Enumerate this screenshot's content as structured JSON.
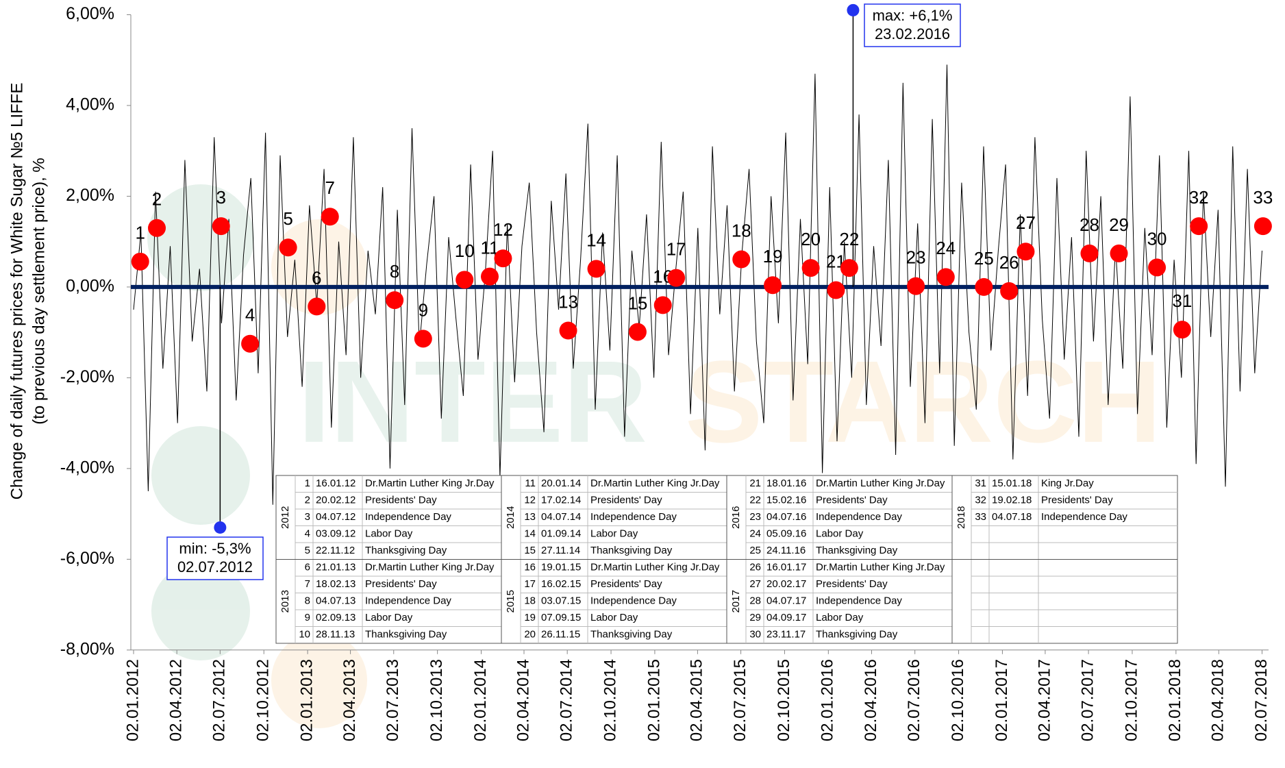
{
  "chart_data": {
    "type": "line",
    "y_label": [
      "Change of daily futures prices for White Sugar №5 LIFFE",
      "(to previous day settlement price), %"
    ],
    "watermark": [
      "INTER",
      "STARCH"
    ],
    "ylim": [
      -8,
      6
    ],
    "yticks": [
      {
        "value": 6,
        "label": "6,00%"
      },
      {
        "value": 4,
        "label": "4,00%"
      },
      {
        "value": 2,
        "label": "2,00%"
      },
      {
        "value": 0,
        "label": "0,00%"
      },
      {
        "value": -2,
        "label": "-2,00%"
      },
      {
        "value": -4,
        "label": "-4,00%"
      },
      {
        "value": -6,
        "label": "-6,00%"
      },
      {
        "value": -8,
        "label": "-8,00%"
      }
    ],
    "xlim": [
      "02.01.2012",
      "02.07.2018"
    ],
    "xticks": [
      "02.01.2012",
      "02.04.2012",
      "02.07.2012",
      "02.10.2012",
      "02.01.2013",
      "02.04.2013",
      "02.07.2013",
      "02.10.2013",
      "02.01.2014",
      "02.04.2014",
      "02.07.2014",
      "02.10.2014",
      "02.01.2015",
      "02.04.2015",
      "02.07.2015",
      "02.10.2015",
      "02.01.2016",
      "02.04.2016",
      "02.07.2016",
      "02.10.2016",
      "02.01.2017",
      "02.04.2017",
      "02.07.2017",
      "02.10.2017",
      "02.01.2018",
      "02.04.2018",
      "02.07.2018"
    ],
    "line_color": "#000000",
    "zero_line_color": "#002060",
    "marker_color": "#ff0000",
    "extreme_color": "#2233ee",
    "daily_change": [
      -0.5,
      1.2,
      -4.5,
      2.1,
      -1.8,
      0.9,
      -3.0,
      2.8,
      -1.2,
      0.4,
      -2.3,
      3.3,
      -0.8,
      1.5,
      -2.5,
      0.7,
      2.4,
      -1.9,
      3.4,
      -4.8,
      2.9,
      -1.1,
      0.6,
      -2.2,
      1.8,
      -0.4,
      2.6,
      -3.1,
      1.0,
      -1.5,
      3.3,
      -2.0,
      0.8,
      -0.6,
      2.2,
      -4.0,
      1.7,
      -2.6,
      3.5,
      -1.3,
      0.5,
      2.0,
      -2.9,
      1.1,
      -0.7,
      -2.4,
      2.7,
      -1.6,
      0.3,
      3.0,
      -4.2,
      1.4,
      -2.1,
      0.9,
      2.3,
      -1.0,
      -3.2,
      1.9,
      -0.5,
      2.5,
      -1.8,
      0.6,
      3.6,
      -2.7,
      1.2,
      -1.4,
      2.9,
      -3.3,
      0.8,
      -0.9,
      1.6,
      -2.0,
      3.2,
      -1.5,
      0.4,
      2.1,
      -2.8,
      1.3,
      -3.6,
      3.1,
      -0.6,
      1.8,
      -2.3,
      0.7,
      2.6,
      -1.2,
      -3.0,
      2.0,
      -0.8,
      3.4,
      -2.5,
      1.5,
      -1.7,
      4.7,
      -4.1,
      2.2,
      -3.4,
      1.0,
      -2.0,
      3.8,
      -2.6,
      0.9,
      -1.3,
      2.8,
      -3.7,
      4.5,
      -2.2,
      1.4,
      -3.0,
      3.7,
      -1.9,
      4.9,
      -3.5,
      2.3,
      -1.0,
      -2.7,
      3.1,
      -1.4,
      0.8,
      2.7,
      -3.8,
      1.6,
      -2.4,
      3.3,
      -0.7,
      -2.9,
      2.4,
      -1.6,
      1.1,
      -3.3,
      3.0,
      -1.2,
      2.0,
      -2.6,
      0.9,
      -1.8,
      4.2,
      -2.8,
      1.3,
      -1.5,
      2.9,
      -3.1,
      0.6,
      -2.0,
      3.0,
      -3.9,
      2.1,
      -1.1,
      1.7,
      -4.4,
      3.1,
      -2.3,
      2.6,
      -1.9,
      0.8
    ],
    "min": {
      "value": -5.3,
      "date": "02.07.2012",
      "label": "min: -5,3%"
    },
    "max": {
      "value": 6.1,
      "date": "23.02.2016",
      "label": "max: +6,1%"
    },
    "years": [
      "2012",
      "2013",
      "2014",
      "2015",
      "2016",
      "2017",
      "2018"
    ],
    "holidays": [
      {
        "n": 1,
        "date": "16.01.12",
        "name": "Dr.Martin Luther King Jr.Day",
        "value": 0.56
      },
      {
        "n": 2,
        "date": "20.02.12",
        "name": "Presidents' Day",
        "value": 1.3
      },
      {
        "n": 3,
        "date": "04.07.12",
        "name": "Independence Day",
        "value": 1.34
      },
      {
        "n": 4,
        "date": "03.09.12",
        "name": "Labor Day",
        "value": -1.25
      },
      {
        "n": 5,
        "date": "22.11.12",
        "name": "Thanksgiving Day",
        "value": 0.87
      },
      {
        "n": 6,
        "date": "21.01.13",
        "name": "Dr.Martin Luther King Jr.Day",
        "value": -0.43
      },
      {
        "n": 7,
        "date": "18.02.13",
        "name": "Presidents' Day",
        "value": 1.55
      },
      {
        "n": 8,
        "date": "04.07.13",
        "name": "Independence Day",
        "value": -0.29
      },
      {
        "n": 9,
        "date": "02.09.13",
        "name": "Labor Day",
        "value": -1.14
      },
      {
        "n": 10,
        "date": "28.11.13",
        "name": "Thanksgiving Day",
        "value": 0.16
      },
      {
        "n": 11,
        "date": "20.01.14",
        "name": "Dr.Martin Luther King Jr.Day",
        "value": 0.23
      },
      {
        "n": 12,
        "date": "17.02.14",
        "name": "Presidents' Day",
        "value": 0.63
      },
      {
        "n": 13,
        "date": "04.07.14",
        "name": "Independence Day",
        "value": -0.96
      },
      {
        "n": 14,
        "date": "01.09.14",
        "name": "Labor Day",
        "value": 0.4
      },
      {
        "n": 15,
        "date": "27.11.14",
        "name": "Thanksgiving Day",
        "value": -0.99
      },
      {
        "n": 16,
        "date": "19.01.15",
        "name": "Dr.Martin Luther King Jr.Day",
        "value": -0.4
      },
      {
        "n": 17,
        "date": "16.02.15",
        "name": "Presidents' Day",
        "value": 0.2
      },
      {
        "n": 18,
        "date": "03.07.15",
        "name": "Independence Day",
        "value": 0.61
      },
      {
        "n": 19,
        "date": "07.09.15",
        "name": "Labor Day",
        "value": 0.04
      },
      {
        "n": 20,
        "date": "26.11.15",
        "name": "Thanksgiving Day",
        "value": 0.42
      },
      {
        "n": 21,
        "date": "18.01.16",
        "name": "Dr.Martin Luther King Jr.Day",
        "value": -0.07
      },
      {
        "n": 22,
        "date": "15.02.16",
        "name": "Presidents' Day",
        "value": 0.42
      },
      {
        "n": 23,
        "date": "04.07.16",
        "name": "Independence Day",
        "value": 0.02
      },
      {
        "n": 24,
        "date": "05.09.16",
        "name": "Labor Day",
        "value": 0.22
      },
      {
        "n": 25,
        "date": "24.11.16",
        "name": "Thanksgiving Day",
        "value": 0
      },
      {
        "n": 26,
        "date": "16.01.17",
        "name": "Dr.Martin Luther King Jr.Day",
        "value": -0.09
      },
      {
        "n": 27,
        "date": "20.02.17",
        "name": "Presidents' Day",
        "value": 0.78
      },
      {
        "n": 28,
        "date": "04.07.17",
        "name": "Independence Day",
        "value": 0.74
      },
      {
        "n": 29,
        "date": "04.09.17",
        "name": "Labor Day",
        "value": 0.74
      },
      {
        "n": 30,
        "date": "23.11.17",
        "name": "Thanksgiving Day",
        "value": 0.43
      },
      {
        "n": 31,
        "date": "15.01.18",
        "name": "King Jr.Day",
        "value": -0.94
      },
      {
        "n": 32,
        "date": "19.02.18",
        "name": "Presidents' Day",
        "value": 1.34
      },
      {
        "n": 33,
        "date": "04.07.18",
        "name": "Independence Day",
        "value": 1.34
      }
    ]
  }
}
